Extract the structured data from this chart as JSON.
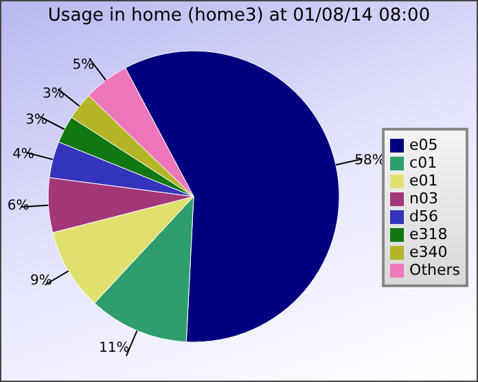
{
  "chart_data": {
    "type": "pie",
    "title": "Usage in home (home3) at 01/08/14 08:00",
    "categories": [
      "e05",
      "c01",
      "e01",
      "n03",
      "d56",
      "e318",
      "e340",
      "Others"
    ],
    "values": [
      58,
      11,
      9,
      6,
      4,
      3,
      3,
      5
    ],
    "value_labels": [
      "58%",
      "11%",
      "9%",
      "6%",
      "4%",
      "3%",
      "3%",
      "5%"
    ],
    "colors": [
      "#00007f",
      "#2e9e6e",
      "#e0e070",
      "#a3377a",
      "#3333bb",
      "#117711",
      "#b5b52a",
      "#ee77bb"
    ],
    "legend": "right"
  }
}
